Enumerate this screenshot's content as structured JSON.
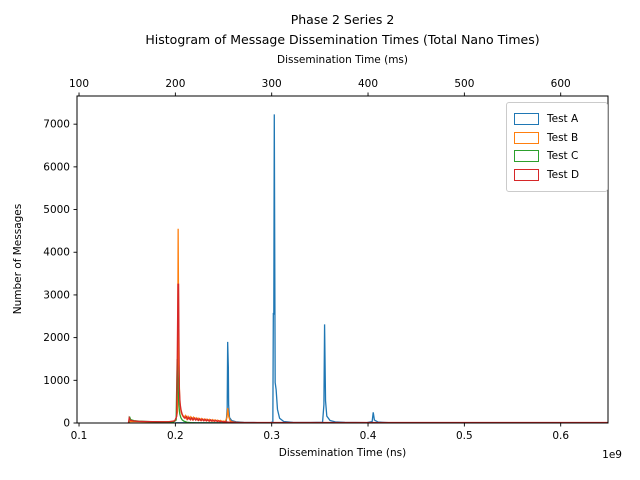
{
  "chart_data": {
    "type": "line",
    "style": "unfilled step histogram, spiky peaks",
    "title_line1": "Phase 2 Series 2",
    "title_line2": "Histogram of Message Dissemination Times (Total Nano Times)",
    "top_axis": {
      "label": "Dissemination Time (ms)",
      "ticks": [
        100,
        200,
        300,
        400,
        500,
        600
      ]
    },
    "x_axis": {
      "label": "Dissemination Time (ns)",
      "ticks": [
        0.1,
        0.2,
        0.3,
        0.4,
        0.5,
        0.6
      ],
      "tick_labels": [
        "0.1",
        "0.2",
        "0.3",
        "0.4",
        "0.5",
        "0.6"
      ],
      "offset_label": "1e9"
    },
    "y_axis": {
      "label": "Number of Messages",
      "ticks": [
        0,
        1000,
        2000,
        3000,
        4000,
        5000,
        6000,
        7000
      ]
    },
    "xlim": [
      0.0979,
      0.6491
    ],
    "ylim": [
      0,
      7660
    ],
    "grid": false,
    "legend_position": "upper right",
    "series": [
      {
        "name": "Test A",
        "color": "#1f77b4",
        "points": [
          [
            0.2,
            0
          ],
          [
            0.2005,
            6
          ],
          [
            0.251,
            6
          ],
          [
            0.2528,
            12
          ],
          [
            0.2538,
            350
          ],
          [
            0.2543,
            1900
          ],
          [
            0.255,
            1310
          ],
          [
            0.2553,
            420
          ],
          [
            0.2562,
            130
          ],
          [
            0.2585,
            55
          ],
          [
            0.263,
            28
          ],
          [
            0.271,
            14
          ],
          [
            0.285,
            9
          ],
          [
            0.299,
            12
          ],
          [
            0.3012,
            25
          ],
          [
            0.3017,
            2580
          ],
          [
            0.3022,
            2540
          ],
          [
            0.3027,
            7230
          ],
          [
            0.3036,
            950
          ],
          [
            0.3046,
            780
          ],
          [
            0.306,
            320
          ],
          [
            0.3082,
            110
          ],
          [
            0.3125,
            35
          ],
          [
            0.322,
            14
          ],
          [
            0.34,
            10
          ],
          [
            0.3528,
            16
          ],
          [
            0.3542,
            430
          ],
          [
            0.3549,
            2310
          ],
          [
            0.3559,
            520
          ],
          [
            0.3572,
            160
          ],
          [
            0.3605,
            60
          ],
          [
            0.366,
            26
          ],
          [
            0.376,
            13
          ],
          [
            0.399,
            9
          ],
          [
            0.4043,
            35
          ],
          [
            0.4054,
            250
          ],
          [
            0.4066,
            70
          ],
          [
            0.4105,
            22
          ],
          [
            0.421,
            9
          ],
          [
            0.5,
            6
          ],
          [
            0.649,
            6
          ]
        ]
      },
      {
        "name": "Test B",
        "color": "#ff7f0e",
        "points": [
          [
            0.152,
            0
          ],
          [
            0.1528,
            35
          ],
          [
            0.158,
            33
          ],
          [
            0.168,
            30
          ],
          [
            0.18,
            28
          ],
          [
            0.191,
            29
          ],
          [
            0.1975,
            36
          ],
          [
            0.2005,
            70
          ],
          [
            0.2022,
            260
          ],
          [
            0.2029,
            4550
          ],
          [
            0.2036,
            1400
          ],
          [
            0.2044,
            620
          ],
          [
            0.2052,
            360
          ],
          [
            0.2063,
            230
          ],
          [
            0.2076,
            165
          ],
          [
            0.209,
            125
          ],
          [
            0.2104,
            175
          ],
          [
            0.2118,
            92
          ],
          [
            0.2132,
            155
          ],
          [
            0.2146,
            98
          ],
          [
            0.216,
            145
          ],
          [
            0.2174,
            82
          ],
          [
            0.2188,
            135
          ],
          [
            0.2202,
            88
          ],
          [
            0.2216,
            122
          ],
          [
            0.223,
            72
          ],
          [
            0.2244,
            112
          ],
          [
            0.2258,
            64
          ],
          [
            0.2272,
            104
          ],
          [
            0.2286,
            66
          ],
          [
            0.23,
            96
          ],
          [
            0.2314,
            58
          ],
          [
            0.2328,
            92
          ],
          [
            0.2342,
            52
          ],
          [
            0.2356,
            86
          ],
          [
            0.237,
            48
          ],
          [
            0.2384,
            80
          ],
          [
            0.2398,
            46
          ],
          [
            0.2412,
            74
          ],
          [
            0.2426,
            50
          ],
          [
            0.244,
            68
          ],
          [
            0.2454,
            42
          ],
          [
            0.2468,
            60
          ],
          [
            0.2482,
            36
          ],
          [
            0.2498,
            46
          ],
          [
            0.2518,
            36
          ],
          [
            0.2536,
            130
          ],
          [
            0.2544,
            350
          ],
          [
            0.2554,
            150
          ],
          [
            0.2568,
            55
          ],
          [
            0.2592,
            26
          ],
          [
            0.2635,
            15
          ],
          [
            0.272,
            8
          ],
          [
            0.3,
            5
          ],
          [
            0.4,
            4
          ],
          [
            0.649,
            4
          ]
        ]
      },
      {
        "name": "Test C",
        "color": "#2ca02c",
        "points": [
          [
            0.1518,
            0
          ],
          [
            0.1524,
            150
          ],
          [
            0.1536,
            80
          ],
          [
            0.157,
            56
          ],
          [
            0.162,
            44
          ],
          [
            0.171,
            35
          ],
          [
            0.181,
            27
          ],
          [
            0.191,
            22
          ],
          [
            0.1985,
            26
          ],
          [
            0.2008,
            70
          ],
          [
            0.2019,
            1500
          ],
          [
            0.2028,
            880
          ],
          [
            0.2036,
            420
          ],
          [
            0.2046,
            210
          ],
          [
            0.2057,
            125
          ],
          [
            0.2071,
            72
          ],
          [
            0.2091,
            40
          ],
          [
            0.2121,
            18
          ],
          [
            0.2161,
            7
          ],
          [
            0.2221,
            3
          ],
          [
            0.24,
            2
          ],
          [
            0.3,
            2
          ],
          [
            0.649,
            2
          ]
        ]
      },
      {
        "name": "Test D",
        "color": "#d62728",
        "points": [
          [
            0.1513,
            0
          ],
          [
            0.1521,
            120
          ],
          [
            0.1533,
            62
          ],
          [
            0.1565,
            48
          ],
          [
            0.1615,
            40
          ],
          [
            0.1685,
            35
          ],
          [
            0.1765,
            32
          ],
          [
            0.1855,
            30
          ],
          [
            0.194,
            33
          ],
          [
            0.1993,
            48
          ],
          [
            0.2014,
            160
          ],
          [
            0.2027,
            3250
          ],
          [
            0.2033,
            3250
          ],
          [
            0.2041,
            820
          ],
          [
            0.2049,
            460
          ],
          [
            0.2059,
            305
          ],
          [
            0.2071,
            205
          ],
          [
            0.2086,
            145
          ],
          [
            0.21,
            112
          ],
          [
            0.2114,
            152
          ],
          [
            0.2128,
            86
          ],
          [
            0.2142,
            132
          ],
          [
            0.2156,
            76
          ],
          [
            0.217,
            122
          ],
          [
            0.2184,
            70
          ],
          [
            0.2198,
            116
          ],
          [
            0.2212,
            66
          ],
          [
            0.2226,
            106
          ],
          [
            0.224,
            61
          ],
          [
            0.2254,
            96
          ],
          [
            0.2268,
            56
          ],
          [
            0.2282,
            91
          ],
          [
            0.2296,
            51
          ],
          [
            0.231,
            86
          ],
          [
            0.2324,
            49
          ],
          [
            0.2338,
            79
          ],
          [
            0.2352,
            43
          ],
          [
            0.2366,
            73
          ],
          [
            0.238,
            41
          ],
          [
            0.2394,
            66
          ],
          [
            0.2408,
            39
          ],
          [
            0.2422,
            59
          ],
          [
            0.2436,
            33
          ],
          [
            0.245,
            51
          ],
          [
            0.2464,
            29
          ],
          [
            0.2478,
            41
          ],
          [
            0.2494,
            26
          ],
          [
            0.2514,
            31
          ],
          [
            0.2544,
            23
          ],
          [
            0.2584,
            19
          ],
          [
            0.264,
            14
          ],
          [
            0.275,
            11
          ],
          [
            0.3,
            10
          ],
          [
            0.4,
            10
          ],
          [
            0.649,
            10
          ]
        ]
      }
    ],
    "legend": [
      {
        "label": "Test A",
        "color": "#1f77b4"
      },
      {
        "label": "Test B",
        "color": "#ff7f0e"
      },
      {
        "label": "Test C",
        "color": "#2ca02c"
      },
      {
        "label": "Test D",
        "color": "#d62728"
      }
    ]
  }
}
